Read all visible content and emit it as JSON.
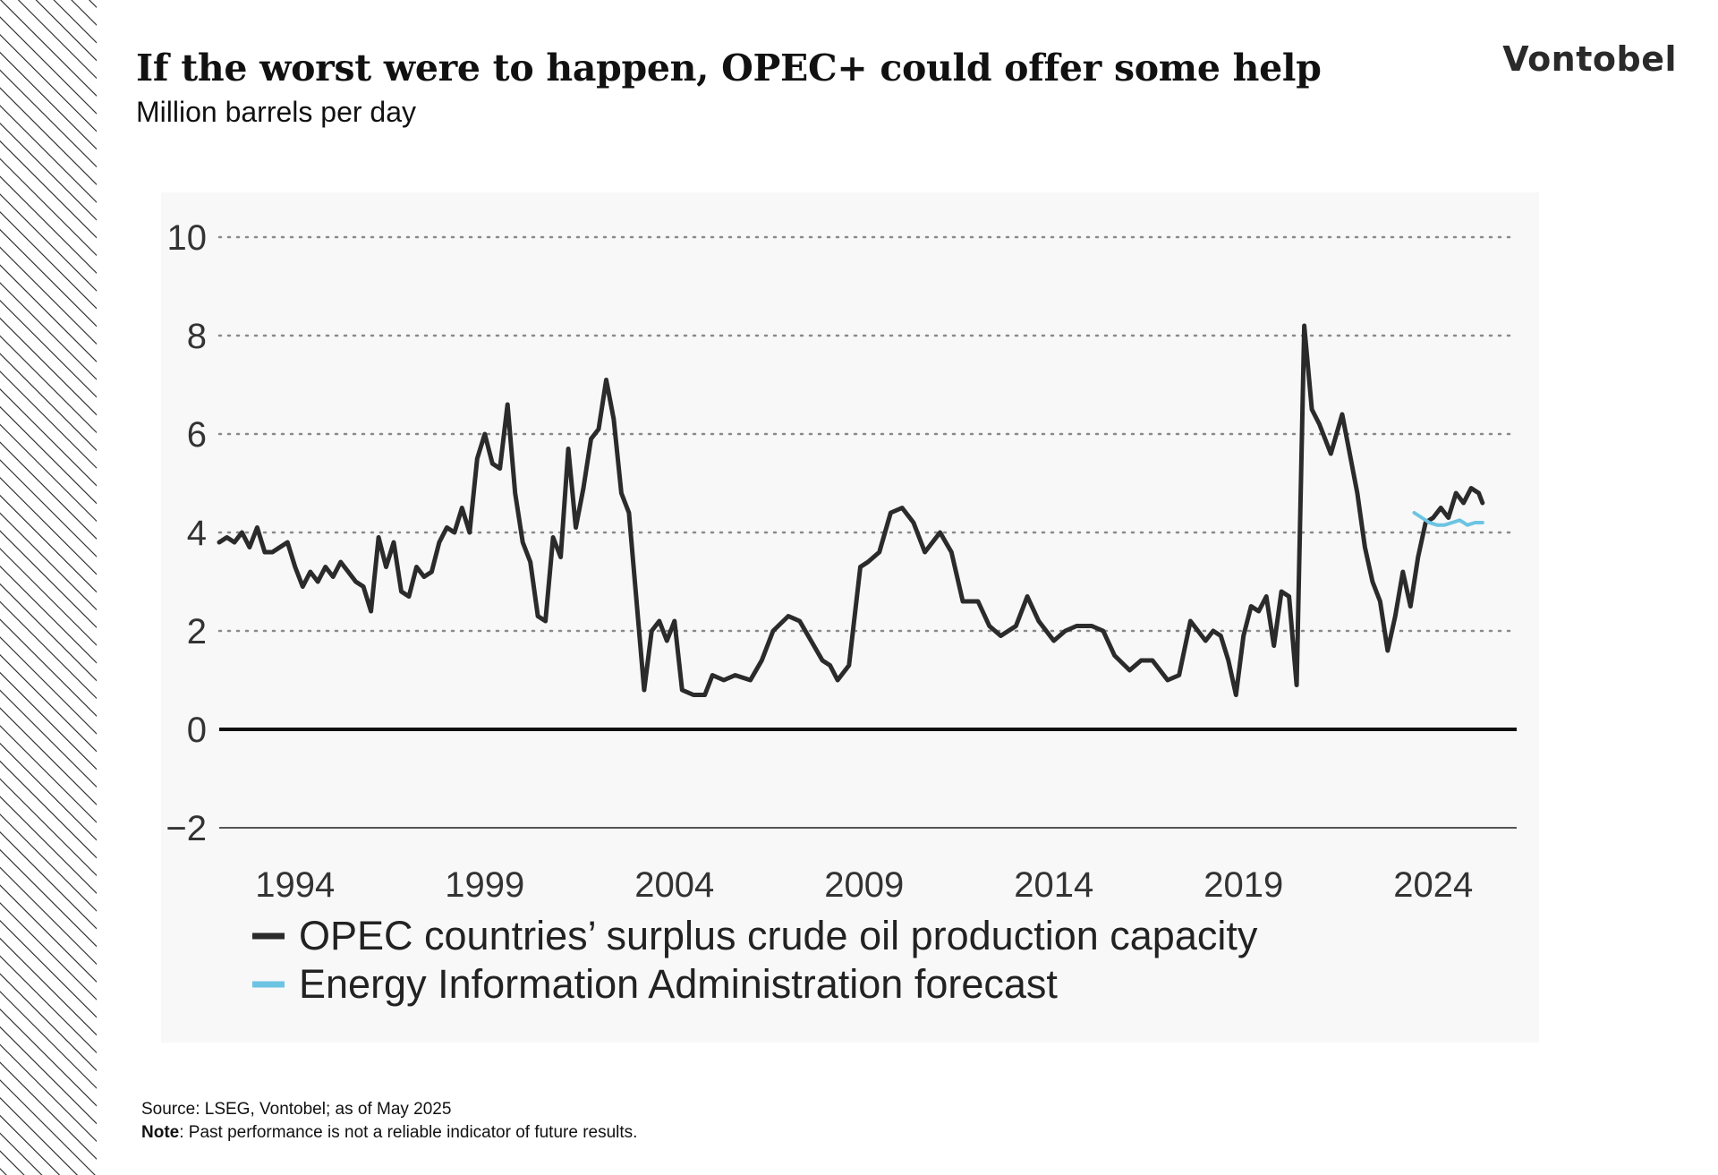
{
  "header": {
    "title": "If the worst were to happen, OPEC+ could offer some help",
    "subtitle": "Million barrels per day",
    "logo": "Vontobel"
  },
  "footer": {
    "source": "Source: LSEG, Vontobel; as of May 2025",
    "note_label": "Note",
    "note_text": ": Past performance is not a reliable indicator of future results."
  },
  "colors": {
    "opec": "#2b2b2b",
    "eia": "#6cc4e2",
    "grid": "#8a8a8a",
    "zero": "#111111"
  },
  "chart_data": {
    "type": "line",
    "title": "If the worst were to happen, OPEC+ could offer some help",
    "ylabel": "Million barrels per day",
    "xlim": [
      1992.0,
      2026.2
    ],
    "ylim": [
      -2,
      10
    ],
    "yticks": [
      10,
      8,
      6,
      4,
      2,
      0,
      -2
    ],
    "ytick_labels": [
      "10",
      "8",
      "6",
      "4",
      "2",
      "0",
      "−2"
    ],
    "xticks": [
      1994,
      1999,
      2004,
      2009,
      2014,
      2019,
      2024
    ],
    "grid": "dotted horizontal",
    "legend": "bottom-left",
    "series": [
      {
        "name": "OPEC countries’ surplus crude oil production capacity",
        "x": [
          1992.0,
          1992.2,
          1992.4,
          1992.6,
          1992.8,
          1993.0,
          1993.2,
          1993.4,
          1993.6,
          1993.8,
          1994.0,
          1994.2,
          1994.4,
          1994.6,
          1994.8,
          1995.0,
          1995.2,
          1995.4,
          1995.6,
          1995.8,
          1996.0,
          1996.2,
          1996.4,
          1996.6,
          1996.8,
          1997.0,
          1997.2,
          1997.4,
          1997.6,
          1997.8,
          1998.0,
          1998.2,
          1998.4,
          1998.6,
          1998.8,
          1999.0,
          1999.2,
          1999.4,
          1999.6,
          1999.8,
          2000.0,
          2000.2,
          2000.4,
          2000.6,
          2000.8,
          2001.0,
          2001.2,
          2001.4,
          2001.6,
          2001.8,
          2002.0,
          2002.2,
          2002.4,
          2002.6,
          2002.8,
          2003.0,
          2003.2,
          2003.4,
          2003.6,
          2003.8,
          2004.0,
          2004.2,
          2004.5,
          2004.8,
          2005.0,
          2005.3,
          2005.6,
          2006.0,
          2006.3,
          2006.6,
          2007.0,
          2007.3,
          2007.6,
          2007.9,
          2008.1,
          2008.3,
          2008.6,
          2008.9,
          2009.1,
          2009.4,
          2009.7,
          2010.0,
          2010.3,
          2010.6,
          2011.0,
          2011.3,
          2011.6,
          2012.0,
          2012.3,
          2012.6,
          2013.0,
          2013.3,
          2013.6,
          2014.0,
          2014.3,
          2014.6,
          2015.0,
          2015.3,
          2015.6,
          2016.0,
          2016.3,
          2016.6,
          2017.0,
          2017.3,
          2017.6,
          2018.0,
          2018.2,
          2018.4,
          2018.6,
          2018.8,
          2019.0,
          2019.2,
          2019.4,
          2019.6,
          2019.8,
          2020.0,
          2020.2,
          2020.4,
          2020.6,
          2020.8,
          2021.0,
          2021.3,
          2021.6,
          2022.0,
          2022.2,
          2022.4,
          2022.6,
          2022.8,
          2023.0,
          2023.2,
          2023.4,
          2023.6,
          2023.8,
          2024.0,
          2024.2,
          2024.4,
          2024.6,
          2024.8,
          2025.0,
          2025.2,
          2025.3
        ],
        "values": [
          3.8,
          3.9,
          3.8,
          4.0,
          3.7,
          4.1,
          3.6,
          3.6,
          3.7,
          3.8,
          3.3,
          2.9,
          3.2,
          3.0,
          3.3,
          3.1,
          3.4,
          3.2,
          3.0,
          2.9,
          2.4,
          3.9,
          3.3,
          3.8,
          2.8,
          2.7,
          3.3,
          3.1,
          3.2,
          3.8,
          4.1,
          4.0,
          4.5,
          4.0,
          5.5,
          6.0,
          5.4,
          5.3,
          6.6,
          4.8,
          3.8,
          3.4,
          2.3,
          2.2,
          3.9,
          3.5,
          5.7,
          4.1,
          4.9,
          5.9,
          6.1,
          7.1,
          6.3,
          4.8,
          4.4,
          2.6,
          0.8,
          2.0,
          2.2,
          1.8,
          2.2,
          0.8,
          0.7,
          0.7,
          1.1,
          1.0,
          1.1,
          1.0,
          1.4,
          2.0,
          2.3,
          2.2,
          1.8,
          1.4,
          1.3,
          1.0,
          1.3,
          3.3,
          3.4,
          3.6,
          4.4,
          4.5,
          4.2,
          3.6,
          4.0,
          3.6,
          2.6,
          2.6,
          2.1,
          1.9,
          2.1,
          2.7,
          2.2,
          1.8,
          2.0,
          2.1,
          2.1,
          2.0,
          1.5,
          1.2,
          1.4,
          1.4,
          1.0,
          1.1,
          2.2,
          1.8,
          2.0,
          1.9,
          1.4,
          0.7,
          1.9,
          2.5,
          2.4,
          2.7,
          1.7,
          2.8,
          2.7,
          0.9,
          8.2,
          6.5,
          6.2,
          5.6,
          6.4,
          4.8,
          3.7,
          3.0,
          2.6,
          1.6,
          2.3,
          3.2,
          2.5,
          3.5,
          4.2,
          4.3,
          4.5,
          4.3,
          4.8,
          4.6,
          4.9,
          4.8,
          4.6
        ]
      },
      {
        "name": "Energy Information Administration forecast",
        "x": [
          2025.4,
          2025.6,
          2025.8,
          2026.0,
          2026.2,
          2026.4,
          2026.6,
          2026.8,
          2027.0,
          2027.2
        ],
        "values": [
          4.4,
          4.3,
          4.2,
          4.15,
          4.15,
          4.2,
          4.25,
          4.15,
          4.2,
          4.2
        ]
      }
    ]
  }
}
